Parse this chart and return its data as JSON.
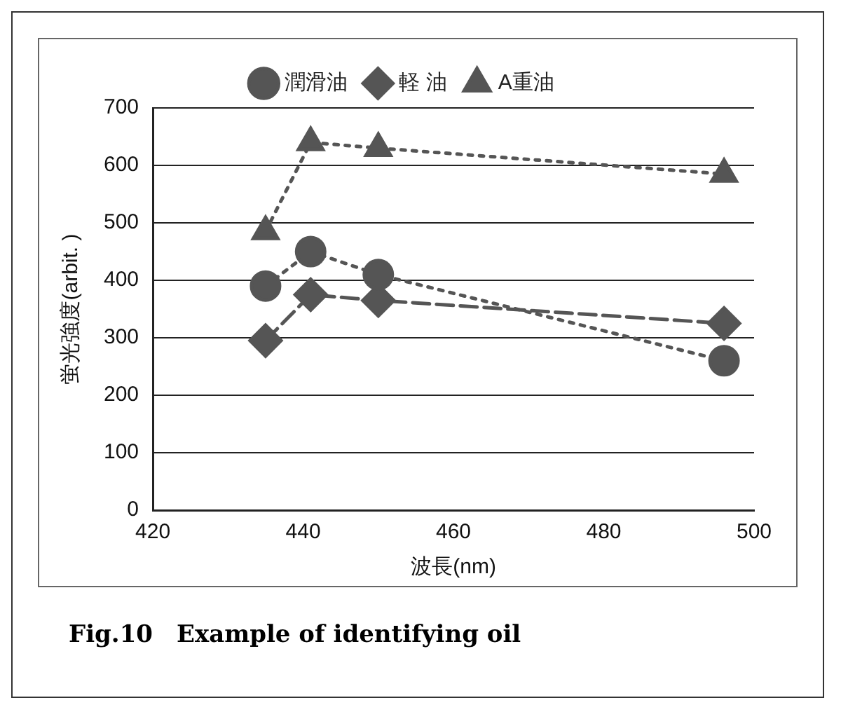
{
  "chart_data": {
    "type": "line",
    "xlabel": "波長(nm)",
    "ylabel": "蛍光強度(arbit. )",
    "annotations": [
      "Fig.10　Example of identifying oil"
    ],
    "xlim": [
      420,
      500
    ],
    "xticks": [
      420,
      440,
      460,
      480,
      500
    ],
    "ylim": [
      0,
      700
    ],
    "yticks": [
      0,
      100,
      200,
      300,
      400,
      500,
      600,
      700
    ],
    "grid": "y",
    "legend": "top",
    "series": [
      {
        "name": "潤滑油",
        "color": "#555555",
        "marker": "circle",
        "line_style": "dotted",
        "x": [
          435,
          441,
          450,
          496
        ],
        "values": [
          390,
          450,
          410,
          260
        ]
      },
      {
        "name": "軽 油",
        "color": "#555555",
        "marker": "diamond",
        "line_style": "dashed",
        "x": [
          435,
          441,
          450,
          496
        ],
        "values": [
          295,
          375,
          365,
          325
        ]
      },
      {
        "name": "A重油",
        "color": "#555555",
        "marker": "triangle",
        "line_style": "dotted",
        "x": [
          435,
          441,
          450,
          496
        ],
        "values": [
          485,
          640,
          630,
          585
        ]
      }
    ]
  }
}
